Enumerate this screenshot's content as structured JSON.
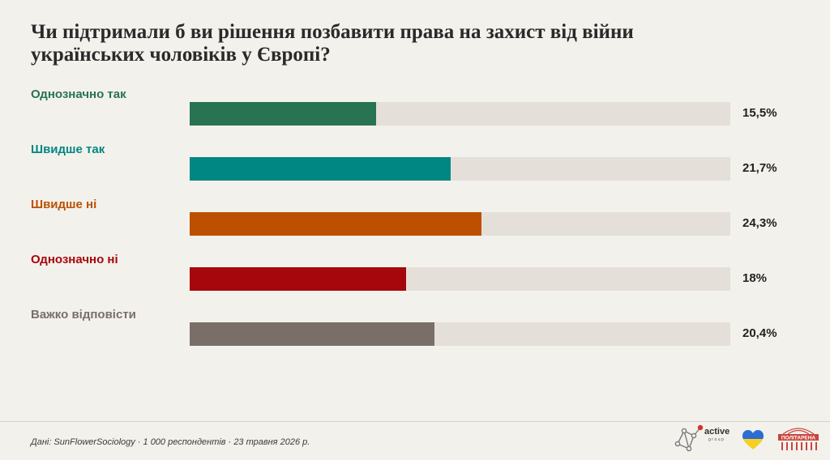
{
  "title": "Чи підтримали б ви рішення позбавити права на захист від війни українських чоловіків у Європі?",
  "chart_data": {
    "type": "bar",
    "orientation": "horizontal",
    "xlim": [
      0,
      45
    ],
    "categories": [
      "Однозначно так",
      "Швидше так",
      "Швидше ні",
      "Однозначно ні",
      "Важко відповісти"
    ],
    "values": [
      15.5,
      21.7,
      24.3,
      18,
      20.4
    ],
    "value_labels": [
      "15,5%",
      "21,7%",
      "24,3%",
      "18%",
      "20,4%"
    ],
    "colors": [
      "#277352",
      "#008783",
      "#bd5000",
      "#a5070c",
      "#7a6e69"
    ]
  },
  "footer": {
    "source": "Дані: SunFlowerSociology · 1 000 респондентів · 23 травня 2026 р."
  },
  "logos": {
    "active_group": {
      "word": "active",
      "sub": "group",
      "icon": "network-icon"
    },
    "heart": {
      "icon": "ukraine-heart-icon",
      "colors": [
        "#2b6cd6",
        "#f7cf22"
      ]
    },
    "poltarena": {
      "word": "ПОЛІТАРЕНА",
      "icon": "parliament-icon",
      "color": "#c9463d"
    }
  }
}
